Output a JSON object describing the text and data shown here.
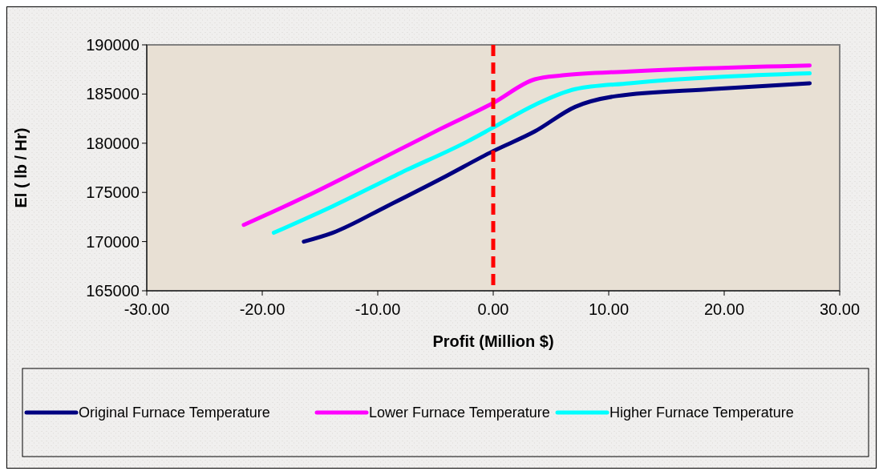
{
  "chart_data": {
    "type": "line",
    "xlabel": "Profit (Million $)",
    "ylabel": "El ( lb / Hr)",
    "xlim": [
      -30,
      30
    ],
    "xticks": [
      {
        "value": -30,
        "label": "-30.00"
      },
      {
        "value": -20,
        "label": "-20.00"
      },
      {
        "value": -10,
        "label": "-10.00"
      },
      {
        "value": 0,
        "label": "0.00"
      },
      {
        "value": 10,
        "label": "10.00"
      },
      {
        "value": 20,
        "label": "20.00"
      },
      {
        "value": 30,
        "label": "30.00"
      }
    ],
    "ylim": [
      165000,
      190000
    ],
    "yticks": [
      165000,
      170000,
      175000,
      180000,
      185000,
      190000
    ],
    "grid": false,
    "legend": "bottom",
    "marker": "none",
    "line_style": "solid",
    "ref_lines": [
      {
        "axis": "x",
        "value": 0,
        "color": "#ff0000",
        "line_style": "dashed"
      }
    ],
    "series": [
      {
        "name": "Original Furnace Temperature",
        "color": "#000080",
        "x": [
          -16.4,
          -13.9,
          -9.2,
          -4.5,
          0,
          3.6,
          7.1,
          10.7,
          18.9,
          27.4
        ],
        "values": [
          170000,
          170900,
          173600,
          176400,
          179200,
          181200,
          183700,
          184800,
          185500,
          186100
        ]
      },
      {
        "name": "Lower Furnace Temperature",
        "color": "#ff00ff",
        "x": [
          -21.6,
          -16.2,
          -10.4,
          -4.5,
          0,
          3.6,
          6.0,
          11.8,
          27.4
        ],
        "values": [
          171700,
          174600,
          178000,
          181500,
          184100,
          186500,
          186900,
          187300,
          187900
        ]
      },
      {
        "name": "Higher Furnace Temperature",
        "color": "#00ffff",
        "x": [
          -19.0,
          -13.9,
          -8.0,
          -2.2,
          0,
          3.6,
          7.1,
          11.8,
          27.4
        ],
        "values": [
          170900,
          173600,
          177000,
          180200,
          181600,
          183900,
          185500,
          186100,
          187100
        ]
      }
    ]
  }
}
